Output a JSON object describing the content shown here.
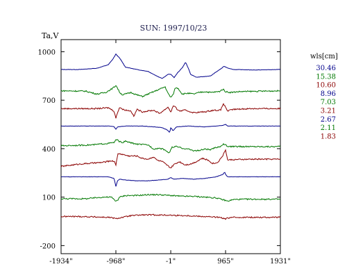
{
  "chart_data": {
    "type": "line",
    "title": "SUN: 1997/10/23",
    "ylabel": "Ta,V",
    "xlabel": "",
    "xlim": [
      -1934,
      1931
    ],
    "ylim": [
      -250,
      1075
    ],
    "x_tick_labels": [
      "-1934\"",
      "-968\"",
      "-1\"",
      "965\"",
      "1931\""
    ],
    "x_tick_values": [
      -1934,
      -968,
      -1,
      965,
      1931
    ],
    "y_ticks": [
      1000,
      700,
      400,
      100,
      -200
    ],
    "grid": false,
    "legend_title": "wls[cm]",
    "legend_position": "right",
    "series": [
      {
        "name": "30.46",
        "color": "#00008b",
        "offset": 890,
        "points": [
          [
            -1934,
            0
          ],
          [
            -1600,
            0
          ],
          [
            -1300,
            8
          ],
          [
            -1100,
            30
          ],
          [
            -1020,
            65
          ],
          [
            -968,
            95
          ],
          [
            -900,
            70
          ],
          [
            -800,
            15
          ],
          [
            -600,
            0
          ],
          [
            -400,
            -12
          ],
          [
            -250,
            -40
          ],
          [
            -150,
            -55
          ],
          [
            -50,
            -30
          ],
          [
            -1,
            -30
          ],
          [
            60,
            -50
          ],
          [
            120,
            -20
          ],
          [
            200,
            10
          ],
          [
            260,
            45
          ],
          [
            300,
            15
          ],
          [
            350,
            -30
          ],
          [
            450,
            -48
          ],
          [
            550,
            -45
          ],
          [
            700,
            -40
          ],
          [
            800,
            -15
          ],
          [
            865,
            0
          ],
          [
            940,
            20
          ],
          [
            1000,
            10
          ],
          [
            1100,
            0
          ],
          [
            1500,
            -3
          ],
          [
            1931,
            0
          ]
        ]
      },
      {
        "name": "15.38",
        "color": "#007800",
        "offset": 758,
        "points": [
          [
            -1934,
            0
          ],
          [
            -1500,
            -2
          ],
          [
            -1300,
            -20
          ],
          [
            -1150,
            -10
          ],
          [
            -1050,
            10
          ],
          [
            -990,
            25
          ],
          [
            -968,
            35
          ],
          [
            -930,
            10
          ],
          [
            -900,
            -10
          ],
          [
            -850,
            -25
          ],
          [
            -700,
            -10
          ],
          [
            -600,
            -25
          ],
          [
            -500,
            -35
          ],
          [
            -400,
            -20
          ],
          [
            -300,
            -5
          ],
          [
            -200,
            10
          ],
          [
            -100,
            25
          ],
          [
            -50,
            -15
          ],
          [
            -1,
            -40
          ],
          [
            40,
            -25
          ],
          [
            80,
            20
          ],
          [
            130,
            15
          ],
          [
            200,
            -20
          ],
          [
            300,
            -15
          ],
          [
            400,
            -20
          ],
          [
            500,
            -10
          ],
          [
            600,
            -5
          ],
          [
            700,
            -10
          ],
          [
            850,
            -5
          ],
          [
            920,
            10
          ],
          [
            965,
            -5
          ],
          [
            1050,
            -10
          ],
          [
            1200,
            -5
          ],
          [
            1931,
            0
          ]
        ]
      },
      {
        "name": "10.60",
        "color": "#8b0000",
        "offset": 648,
        "points": [
          [
            -1934,
            0
          ],
          [
            -1300,
            0
          ],
          [
            -1100,
            5
          ],
          [
            -1000,
            -15
          ],
          [
            -968,
            -60
          ],
          [
            -940,
            -25
          ],
          [
            -900,
            10
          ],
          [
            -850,
            -5
          ],
          [
            -700,
            -15
          ],
          [
            -650,
            -50
          ],
          [
            -600,
            -5
          ],
          [
            -500,
            -20
          ],
          [
            -300,
            -10
          ],
          [
            -200,
            -30
          ],
          [
            -100,
            -5
          ],
          [
            -50,
            10
          ],
          [
            -1,
            -20
          ],
          [
            50,
            20
          ],
          [
            100,
            0
          ],
          [
            150,
            -15
          ],
          [
            250,
            -10
          ],
          [
            400,
            -25
          ],
          [
            600,
            -20
          ],
          [
            750,
            -10
          ],
          [
            880,
            -10
          ],
          [
            920,
            30
          ],
          [
            965,
            10
          ],
          [
            1000,
            -15
          ],
          [
            1100,
            -5
          ],
          [
            1400,
            0
          ],
          [
            1931,
            0
          ]
        ]
      },
      {
        "name": "8.96",
        "color": "#00008b",
        "offset": 540,
        "points": [
          [
            -1934,
            0
          ],
          [
            -1500,
            0
          ],
          [
            -1100,
            0
          ],
          [
            -1000,
            -3
          ],
          [
            -968,
            -20
          ],
          [
            -940,
            -5
          ],
          [
            -800,
            0
          ],
          [
            -500,
            0
          ],
          [
            -300,
            -5
          ],
          [
            -150,
            -10
          ],
          [
            -60,
            -25
          ],
          [
            -20,
            -40
          ],
          [
            -1,
            -10
          ],
          [
            40,
            -30
          ],
          [
            100,
            -5
          ],
          [
            300,
            0
          ],
          [
            600,
            -5
          ],
          [
            800,
            0
          ],
          [
            930,
            5
          ],
          [
            965,
            10
          ],
          [
            1000,
            0
          ],
          [
            1931,
            0
          ]
        ]
      },
      {
        "name": "7.03",
        "color": "#007800",
        "offset": 418,
        "points": [
          [
            -1934,
            0
          ],
          [
            -1400,
            5
          ],
          [
            -1100,
            15
          ],
          [
            -1000,
            20
          ],
          [
            -968,
            35
          ],
          [
            -930,
            35
          ],
          [
            -900,
            25
          ],
          [
            -850,
            20
          ],
          [
            -800,
            28
          ],
          [
            -700,
            18
          ],
          [
            -600,
            10
          ],
          [
            -400,
            5
          ],
          [
            -300,
            -20
          ],
          [
            -200,
            -15
          ],
          [
            -100,
            -25
          ],
          [
            -60,
            -40
          ],
          [
            -20,
            -40
          ],
          [
            20,
            -10
          ],
          [
            100,
            -5
          ],
          [
            200,
            -15
          ],
          [
            300,
            -20
          ],
          [
            400,
            -30
          ],
          [
            500,
            -30
          ],
          [
            600,
            -20
          ],
          [
            700,
            -25
          ],
          [
            800,
            -10
          ],
          [
            870,
            -5
          ],
          [
            920,
            10
          ],
          [
            965,
            5
          ],
          [
            1000,
            -5
          ],
          [
            1931,
            -5
          ]
        ]
      },
      {
        "name": "3.21",
        "color": "#8b0000",
        "offset": 290,
        "points": [
          [
            -1934,
            0
          ],
          [
            -1600,
            15
          ],
          [
            -1200,
            25
          ],
          [
            -1050,
            35
          ],
          [
            -990,
            30
          ],
          [
            -968,
            10
          ],
          [
            -930,
            80
          ],
          [
            -850,
            75
          ],
          [
            -750,
            65
          ],
          [
            -600,
            65
          ],
          [
            -500,
            50
          ],
          [
            -400,
            45
          ],
          [
            -300,
            60
          ],
          [
            -250,
            40
          ],
          [
            -150,
            30
          ],
          [
            -1,
            -10
          ],
          [
            50,
            10
          ],
          [
            150,
            30
          ],
          [
            250,
            10
          ],
          [
            350,
            15
          ],
          [
            450,
            30
          ],
          [
            550,
            50
          ],
          [
            650,
            40
          ],
          [
            730,
            20
          ],
          [
            800,
            20
          ],
          [
            850,
            35
          ],
          [
            900,
            60
          ],
          [
            930,
            75
          ],
          [
            965,
            105
          ],
          [
            1000,
            40
          ],
          [
            1100,
            42
          ],
          [
            1500,
            45
          ],
          [
            1931,
            45
          ]
        ]
      },
      {
        "name": "2.67",
        "color": "#00008b",
        "offset": 226,
        "points": [
          [
            -1934,
            0
          ],
          [
            -1500,
            0
          ],
          [
            -1100,
            0
          ],
          [
            -1000,
            -10
          ],
          [
            -968,
            -60
          ],
          [
            -940,
            -25
          ],
          [
            -900,
            -15
          ],
          [
            -800,
            -20
          ],
          [
            -600,
            -25
          ],
          [
            -400,
            -25
          ],
          [
            -200,
            -20
          ],
          [
            -50,
            -15
          ],
          [
            -1,
            -5
          ],
          [
            50,
            -15
          ],
          [
            200,
            -10
          ],
          [
            400,
            -15
          ],
          [
            600,
            -10
          ],
          [
            800,
            0
          ],
          [
            880,
            10
          ],
          [
            920,
            15
          ],
          [
            950,
            30
          ],
          [
            965,
            15
          ],
          [
            1000,
            0
          ],
          [
            1100,
            0
          ],
          [
            1500,
            0
          ],
          [
            1931,
            0
          ]
        ]
      },
      {
        "name": "2.11",
        "color": "#007800",
        "offset": 90,
        "points": [
          [
            -1934,
            0
          ],
          [
            -1500,
            0
          ],
          [
            -1200,
            10
          ],
          [
            -1050,
            10
          ],
          [
            -1000,
            -5
          ],
          [
            -968,
            -15
          ],
          [
            -930,
            -5
          ],
          [
            -900,
            10
          ],
          [
            -800,
            20
          ],
          [
            -600,
            20
          ],
          [
            -400,
            25
          ],
          [
            -200,
            25
          ],
          [
            -1,
            20
          ],
          [
            200,
            15
          ],
          [
            400,
            15
          ],
          [
            600,
            10
          ],
          [
            800,
            5
          ],
          [
            960,
            -10
          ],
          [
            1000,
            -15
          ],
          [
            1100,
            -5
          ],
          [
            1300,
            -3
          ],
          [
            1931,
            -3
          ]
        ]
      },
      {
        "name": "1.83",
        "color": "#8b0000",
        "offset": -20,
        "points": [
          [
            -1934,
            0
          ],
          [
            -1600,
            0
          ],
          [
            -1300,
            -3
          ],
          [
            -1100,
            -5
          ],
          [
            -1000,
            -10
          ],
          [
            -968,
            -15
          ],
          [
            -930,
            -10
          ],
          [
            -850,
            -5
          ],
          [
            -700,
            5
          ],
          [
            -500,
            10
          ],
          [
            -300,
            10
          ],
          [
            -1,
            8
          ],
          [
            300,
            5
          ],
          [
            600,
            0
          ],
          [
            850,
            -5
          ],
          [
            960,
            -15
          ],
          [
            1000,
            -10
          ],
          [
            1100,
            -5
          ],
          [
            1931,
            -5
          ]
        ]
      }
    ]
  }
}
